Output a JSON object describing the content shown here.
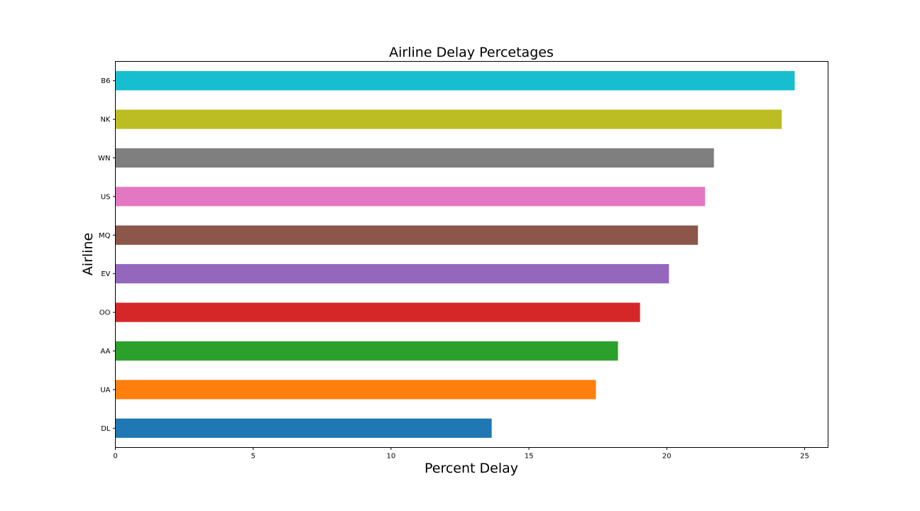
{
  "chart_data": {
    "type": "bar",
    "orientation": "horizontal",
    "title": "Airline Delay Percetages",
    "xlabel": "Percent Delay",
    "ylabel": "Airline",
    "xlim": [
      0,
      25.85
    ],
    "xticks": [
      0,
      5,
      10,
      15,
      20,
      25
    ],
    "grid": false,
    "categories": [
      "DL",
      "UA",
      "AA",
      "OO",
      "EV",
      "MQ",
      "US",
      "WN",
      "NK",
      "B6"
    ],
    "values": [
      13.65,
      17.43,
      18.23,
      19.03,
      20.08,
      21.13,
      21.39,
      21.71,
      24.17,
      24.64
    ],
    "colors": [
      "#1f77b4",
      "#ff7f0e",
      "#2ca02c",
      "#d62728",
      "#9467bd",
      "#8c564b",
      "#e377c2",
      "#7f7f7f",
      "#bcbd22",
      "#17becf"
    ]
  }
}
